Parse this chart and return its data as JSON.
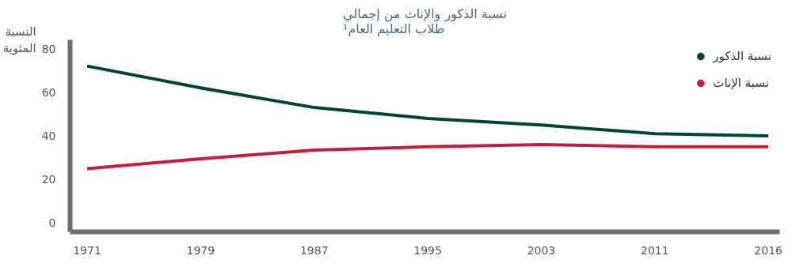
{
  "chart_data": {
    "type": "line",
    "title": "نسبة الذكور والإناث من إجمالي\nطلاب التعليم العام¹",
    "ylabel": "النسبة\nالمئوية",
    "categories": [
      "1971",
      "1979",
      "1987",
      "1995",
      "2003",
      "2011",
      "2016"
    ],
    "series": [
      {
        "name": "نسبة الذكور",
        "color": "#004631",
        "values": [
          72,
          62,
          53,
          48,
          45,
          41,
          40
        ]
      },
      {
        "name": "نسبة الإناث",
        "color": "#c41e3a",
        "values": [
          25,
          29.5,
          33.5,
          35,
          36,
          35,
          35
        ]
      }
    ],
    "ylim": [
      -4,
      84
    ],
    "yticks": [
      0,
      20,
      40,
      60,
      80
    ],
    "grid": false,
    "legend": "top right",
    "marker": "none",
    "line_style": "solid"
  }
}
